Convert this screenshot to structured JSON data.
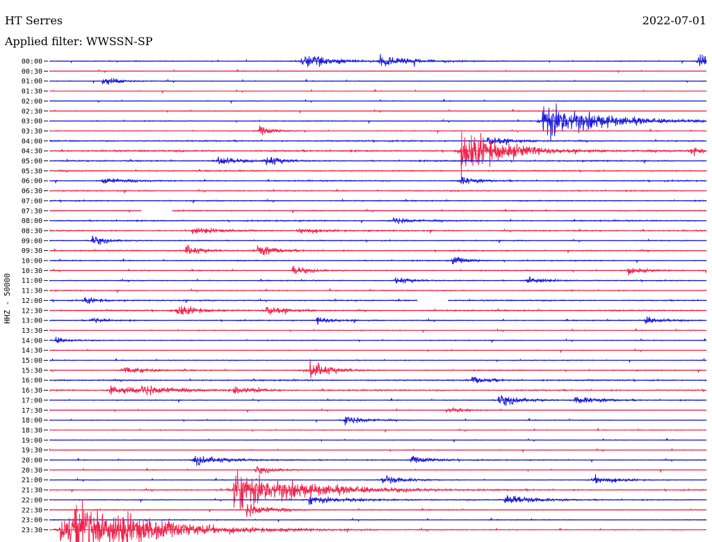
{
  "header": {
    "station": "HT Serres",
    "date": "2022-07-01",
    "filter_label": "Applied filter: WWSSN-SP",
    "channel_label": "HHZ - 50000"
  },
  "colors": {
    "even_trace": "#1a1adb",
    "odd_trace": "#f0244c",
    "text": "#000000"
  },
  "chart_data": {
    "type": "line",
    "title": "HT Serres",
    "subtitle": "Applied filter: WWSSN-SP",
    "ylabel": "HHZ - 50000",
    "row_labels": [
      "00:00",
      "00:30",
      "01:00",
      "01:30",
      "02:00",
      "02:30",
      "03:00",
      "03:30",
      "04:00",
      "04:30",
      "05:00",
      "05:30",
      "06:00",
      "06:30",
      "07:00",
      "07:30",
      "08:00",
      "08:30",
      "09:00",
      "09:30",
      "10:00",
      "10:30",
      "11:00",
      "11:30",
      "12:00",
      "12:30",
      "13:00",
      "13:30",
      "14:00",
      "14:30",
      "15:00",
      "15:30",
      "16:00",
      "16:30",
      "17:00",
      "17:30",
      "18:00",
      "18:30",
      "19:00",
      "19:30",
      "20:00",
      "20:30",
      "21:00",
      "21:30",
      "22:00",
      "22:30",
      "23:00",
      "23:30"
    ],
    "minutes_per_row": 30,
    "noise_levels": [
      0.35,
      0.3,
      0.3,
      0.2,
      0.3,
      0.3,
      0.35,
      0.35,
      0.6,
      0.75,
      0.6,
      0.55,
      0.55,
      0.5,
      0.5,
      0.45,
      0.55,
      0.6,
      0.45,
      0.5,
      0.45,
      0.45,
      0.45,
      0.45,
      0.55,
      0.6,
      0.45,
      0.35,
      0.4,
      0.3,
      0.35,
      0.45,
      0.6,
      0.6,
      0.4,
      0.3,
      0.3,
      0.3,
      0.3,
      0.3,
      0.35,
      0.3,
      0.3,
      0.5,
      0.4,
      0.4,
      0.35,
      0.35
    ],
    "events": [
      {
        "row": 0,
        "minute": 11.5,
        "amplitude": 10,
        "duration": 1.2
      },
      {
        "row": 0,
        "minute": 15.1,
        "amplitude": 9,
        "duration": 1.2
      },
      {
        "row": 0,
        "minute": 29.6,
        "amplitude": 9,
        "duration": 0.8
      },
      {
        "row": 2,
        "minute": 2.4,
        "amplitude": 6,
        "duration": 0.8
      },
      {
        "row": 6,
        "minute": 22.5,
        "amplitude": 28,
        "duration": 2.2
      },
      {
        "row": 7,
        "minute": 9.6,
        "amplitude": 7,
        "duration": 0.5
      },
      {
        "row": 8,
        "minute": 20.0,
        "amplitude": 8,
        "duration": 0.8
      },
      {
        "row": 9,
        "minute": 18.8,
        "amplitude": 30,
        "duration": 1.8
      },
      {
        "row": 9,
        "minute": 29.3,
        "amplitude": 6,
        "duration": 0.6
      },
      {
        "row": 10,
        "minute": 7.7,
        "amplitude": 8,
        "duration": 0.6
      },
      {
        "row": 10,
        "minute": 9.9,
        "amplitude": 8,
        "duration": 0.6
      },
      {
        "row": 12,
        "minute": 2.4,
        "amplitude": 6,
        "duration": 0.7
      },
      {
        "row": 12,
        "minute": 18.7,
        "amplitude": 7,
        "duration": 0.6
      },
      {
        "row": 16,
        "minute": 15.7,
        "amplitude": 7,
        "duration": 0.6
      },
      {
        "row": 17,
        "minute": 6.5,
        "amplitude": 6,
        "duration": 0.8
      },
      {
        "row": 17,
        "minute": 11.4,
        "amplitude": 5,
        "duration": 0.8
      },
      {
        "row": 18,
        "minute": 1.9,
        "amplitude": 7,
        "duration": 0.6
      },
      {
        "row": 19,
        "minute": 6.2,
        "amplitude": 8,
        "duration": 0.7
      },
      {
        "row": 19,
        "minute": 9.5,
        "amplitude": 9,
        "duration": 0.7
      },
      {
        "row": 20,
        "minute": 18.4,
        "amplitude": 6,
        "duration": 0.6
      },
      {
        "row": 21,
        "minute": 11.1,
        "amplitude": 7,
        "duration": 0.6
      },
      {
        "row": 21,
        "minute": 26.4,
        "amplitude": 6,
        "duration": 0.6
      },
      {
        "row": 22,
        "minute": 15.8,
        "amplitude": 6,
        "duration": 0.6
      },
      {
        "row": 22,
        "minute": 21.8,
        "amplitude": 8,
        "duration": 0.6
      },
      {
        "row": 24,
        "minute": 1.6,
        "amplitude": 5,
        "duration": 0.6
      },
      {
        "row": 25,
        "minute": 5.8,
        "amplitude": 9,
        "duration": 0.8
      },
      {
        "row": 25,
        "minute": 9.9,
        "amplitude": 8,
        "duration": 0.7
      },
      {
        "row": 26,
        "minute": 1.9,
        "amplitude": 5,
        "duration": 0.6
      },
      {
        "row": 26,
        "minute": 12.2,
        "amplitude": 5,
        "duration": 0.8
      },
      {
        "row": 26,
        "minute": 27.2,
        "amplitude": 5,
        "duration": 0.8
      },
      {
        "row": 28,
        "minute": 0.3,
        "amplitude": 4,
        "duration": 0.6
      },
      {
        "row": 31,
        "minute": 3.4,
        "amplitude": 5,
        "duration": 1.0
      },
      {
        "row": 31,
        "minute": 11.9,
        "amplitude": 14,
        "duration": 0.8
      },
      {
        "row": 32,
        "minute": 19.3,
        "amplitude": 5,
        "duration": 0.8
      },
      {
        "row": 33,
        "minute": 2.8,
        "amplitude": 6,
        "duration": 1.4
      },
      {
        "row": 33,
        "minute": 4.2,
        "amplitude": 8,
        "duration": 1.0
      },
      {
        "row": 33,
        "minute": 8.4,
        "amplitude": 7,
        "duration": 0.8
      },
      {
        "row": 34,
        "minute": 20.5,
        "amplitude": 7,
        "duration": 1.0
      },
      {
        "row": 34,
        "minute": 24.0,
        "amplitude": 6,
        "duration": 1.0
      },
      {
        "row": 35,
        "minute": 18.1,
        "amplitude": 5,
        "duration": 0.6
      },
      {
        "row": 36,
        "minute": 13.5,
        "amplitude": 9,
        "duration": 0.7
      },
      {
        "row": 40,
        "minute": 6.6,
        "amplitude": 6,
        "duration": 1.6
      },
      {
        "row": 40,
        "minute": 16.5,
        "amplitude": 5,
        "duration": 1.0
      },
      {
        "row": 41,
        "minute": 9.4,
        "amplitude": 5,
        "duration": 0.8
      },
      {
        "row": 42,
        "minute": 15.2,
        "amplitude": 8,
        "duration": 0.8
      },
      {
        "row": 42,
        "minute": 24.8,
        "amplitude": 6,
        "duration": 1.0
      },
      {
        "row": 43,
        "minute": 8.4,
        "amplitude": 28,
        "duration": 2.8
      },
      {
        "row": 44,
        "minute": 11.8,
        "amplitude": 6,
        "duration": 1.6
      },
      {
        "row": 44,
        "minute": 20.8,
        "amplitude": 8,
        "duration": 1.2
      },
      {
        "row": 45,
        "minute": 9.0,
        "amplitude": 12,
        "duration": 0.8
      },
      {
        "row": 47,
        "minute": 0.5,
        "amplitude": 22,
        "duration": 2.2
      },
      {
        "row": 47,
        "minute": 1.2,
        "amplitude": 30,
        "duration": 3.2
      }
    ],
    "gaps": [
      {
        "row": 15,
        "start_minute": 4.2,
        "end_minute": 5.6
      },
      {
        "row": 24,
        "start_minute": 16.8,
        "end_minute": 18.2
      }
    ]
  }
}
